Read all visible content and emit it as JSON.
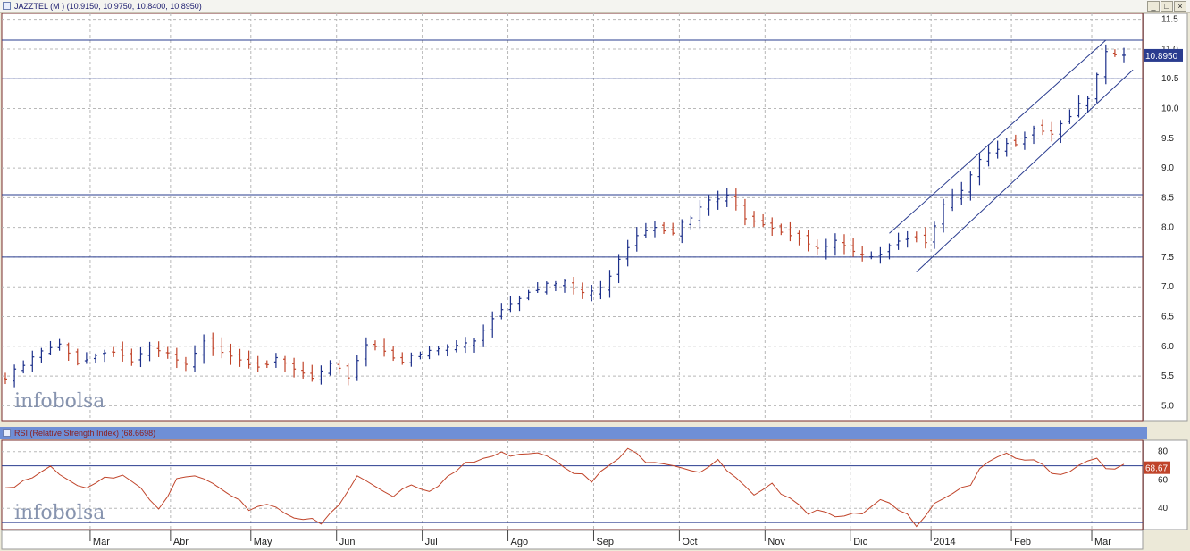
{
  "price_panel": {
    "title": "JAZZTEL (M ) (10.9150, 10.9750, 10.8400, 10.8950)",
    "last_price_tag": "10.8950",
    "watermark": "infobolsa",
    "window_buttons": [
      "_",
      "□",
      "×"
    ]
  },
  "rsi_panel": {
    "title": "RSI (Relative Strength Index) (68.6698)",
    "last_value_tag": "68.67",
    "watermark": "infobolsa"
  },
  "colors": {
    "up_bar": "#1c2f8a",
    "down_bar": "#c0442a",
    "level_line": "#2a3c8f",
    "rsi_line": "#c0442a",
    "price_tag": "#2a3c8f",
    "rsi_tag": "#c0442a",
    "grid": "#b8b8b8"
  },
  "chart_data": [
    {
      "type": "line",
      "chart_kind": "ohlc-bars",
      "title": "JAZZTEL (M ) (10.9150, 10.9750, 10.8400, 10.8950)",
      "x_ticks": [
        "Mar",
        "Abr",
        "May",
        "Jun",
        "Jul",
        "Ago",
        "Sep",
        "Oct",
        "Nov",
        "Dic",
        "2014",
        "Feb",
        "Mar"
      ],
      "y_ticks": [
        5.0,
        5.5,
        6.0,
        6.5,
        7.0,
        7.5,
        8.0,
        8.5,
        9.0,
        9.5,
        10.0,
        10.5,
        11.0,
        11.5
      ],
      "ylim": [
        4.75,
        11.6
      ],
      "grid": true,
      "last": 10.895,
      "horizontal_levels": [
        7.5,
        8.55,
        10.5,
        11.15
      ],
      "channel": {
        "upper": [
          [
            7.9,
            11.15
          ]
        ],
        "lower": [
          [
            7.25,
            10.65
          ]
        ]
      },
      "series": [
        {
          "close_path": [
            [
              0,
              5.45
            ],
            [
              4,
              5.9
            ],
            [
              6,
              6.0
            ],
            [
              8,
              5.75
            ],
            [
              10,
              5.85
            ],
            [
              12,
              5.95
            ],
            [
              14,
              5.75
            ],
            [
              16,
              5.95
            ],
            [
              18,
              5.85
            ],
            [
              20,
              5.65
            ],
            [
              22,
              6.05
            ],
            [
              24,
              5.95
            ],
            [
              26,
              5.8
            ],
            [
              28,
              5.7
            ],
            [
              30,
              5.75
            ],
            [
              32,
              5.6
            ],
            [
              34,
              5.45
            ],
            [
              36,
              5.65
            ],
            [
              38,
              5.5
            ],
            [
              40,
              6.05
            ],
            [
              42,
              5.95
            ],
            [
              44,
              5.75
            ],
            [
              46,
              5.85
            ],
            [
              48,
              5.95
            ],
            [
              50,
              6.0
            ],
            [
              52,
              6.1
            ],
            [
              54,
              6.5
            ],
            [
              56,
              6.75
            ],
            [
              58,
              6.95
            ],
            [
              60,
              7.05
            ],
            [
              62,
              7.05
            ],
            [
              64,
              6.9
            ],
            [
              66,
              6.95
            ],
            [
              68,
              7.5
            ],
            [
              70,
              7.9
            ],
            [
              72,
              8.05
            ],
            [
              74,
              7.95
            ],
            [
              76,
              8.15
            ],
            [
              78,
              8.45
            ],
            [
              80,
              8.5
            ],
            [
              82,
              8.2
            ],
            [
              84,
              8.1
            ],
            [
              86,
              7.95
            ],
            [
              88,
              7.85
            ],
            [
              90,
              7.6
            ],
            [
              92,
              7.75
            ],
            [
              94,
              7.55
            ],
            [
              96,
              7.45
            ],
            [
              98,
              7.75
            ],
            [
              100,
              7.85
            ],
            [
              102,
              7.8
            ],
            [
              104,
              8.35
            ],
            [
              106,
              8.6
            ],
            [
              108,
              9.1
            ],
            [
              110,
              9.3
            ],
            [
              112,
              9.45
            ],
            [
              114,
              9.7
            ],
            [
              116,
              9.6
            ],
            [
              118,
              9.9
            ],
            [
              120,
              10.15
            ],
            [
              122,
              10.9
            ],
            [
              124,
              10.895
            ]
          ]
        }
      ]
    },
    {
      "type": "line",
      "title": "RSI (Relative Strength Index) (68.6698)",
      "x_ticks": [
        "Mar",
        "Abr",
        "May",
        "Jun",
        "Jul",
        "Ago",
        "Sep",
        "Oct",
        "Nov",
        "Dic",
        "2014",
        "Feb",
        "Mar"
      ],
      "y_ticks": [
        40,
        60,
        80
      ],
      "ylim": [
        25,
        88
      ],
      "grid": true,
      "reference_levels": [
        30,
        70
      ],
      "last": 68.67,
      "series": [
        {
          "name": "RSI",
          "points": [
            [
              0,
              55
            ],
            [
              3,
              62
            ],
            [
              5,
              67
            ],
            [
              7,
              58
            ],
            [
              9,
              52
            ],
            [
              11,
              60
            ],
            [
              13,
              66
            ],
            [
              15,
              56
            ],
            [
              17,
              42
            ],
            [
              19,
              58
            ],
            [
              21,
              62
            ],
            [
              23,
              57
            ],
            [
              25,
              46
            ],
            [
              27,
              40
            ],
            [
              29,
              44
            ],
            [
              31,
              38
            ],
            [
              33,
              33
            ],
            [
              35,
              28
            ],
            [
              37,
              42
            ],
            [
              39,
              62
            ],
            [
              41,
              56
            ],
            [
              43,
              50
            ],
            [
              45,
              58
            ],
            [
              47,
              54
            ],
            [
              49,
              62
            ],
            [
              51,
              70
            ],
            [
              53,
              75
            ],
            [
              55,
              78
            ],
            [
              57,
              80
            ],
            [
              59,
              81
            ],
            [
              61,
              76
            ],
            [
              63,
              67
            ],
            [
              65,
              58
            ],
            [
              67,
              70
            ],
            [
              69,
              80
            ],
            [
              71,
              75
            ],
            [
              73,
              74
            ],
            [
              75,
              70
            ],
            [
              77,
              67
            ],
            [
              79,
              72
            ],
            [
              81,
              60
            ],
            [
              83,
              47
            ],
            [
              85,
              55
            ],
            [
              87,
              50
            ],
            [
              89,
              38
            ],
            [
              91,
              40
            ],
            [
              93,
              33
            ],
            [
              95,
              35
            ],
            [
              97,
              44
            ],
            [
              99,
              38
            ],
            [
              101,
              30
            ],
            [
              103,
              45
            ],
            [
              105,
              52
            ],
            [
              107,
              58
            ],
            [
              109,
              72
            ],
            [
              111,
              76
            ],
            [
              113,
              74
            ],
            [
              115,
              70
            ],
            [
              117,
              64
            ],
            [
              119,
              72
            ],
            [
              121,
              76
            ],
            [
              123,
              66
            ],
            [
              124,
              68.67
            ]
          ]
        }
      ]
    }
  ]
}
